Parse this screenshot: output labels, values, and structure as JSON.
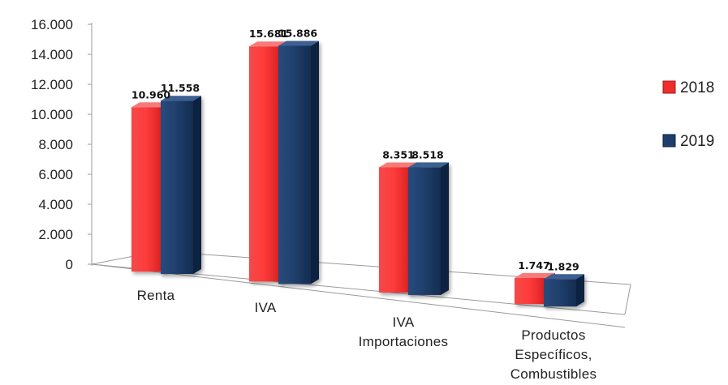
{
  "chart_data": {
    "type": "bar",
    "categories": [
      [
        "Renta"
      ],
      [
        "IVA"
      ],
      [
        "IVA",
        "Importaciones"
      ],
      [
        "Productos",
        "Específicos,",
        "Combustibles"
      ]
    ],
    "series": [
      {
        "name": "2018",
        "values": [
          10960,
          15681,
          8351,
          1747
        ],
        "labels": [
          "10.960",
          "15.681",
          "8.351",
          "1.747"
        ],
        "color": "#ee2d2d"
      },
      {
        "name": "2019",
        "values": [
          11558,
          15886,
          8518,
          1829
        ],
        "labels": [
          "11.558",
          "15.886",
          "8.518",
          "1.829"
        ],
        "color": "#1e3f6e"
      }
    ],
    "yticks": [
      "0",
      "2.000",
      "4.000",
      "6.000",
      "8.000",
      "10.000",
      "12.000",
      "14.000",
      "16.000"
    ],
    "ylim": [
      0,
      16000
    ],
    "grid": false,
    "legend": "right",
    "three_d": true
  }
}
